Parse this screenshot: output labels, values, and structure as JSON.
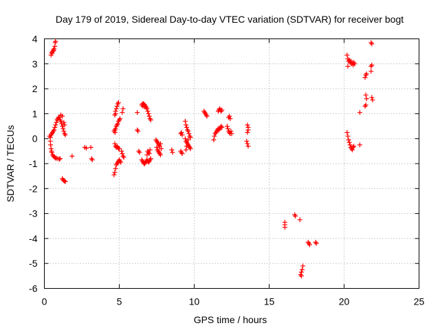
{
  "chart_data": {
    "type": "scatter",
    "title": "Day 179 of 2019, Sidereal Day-to-day VTEC variation (SDTVAR) for receiver bogt",
    "xlabel": "GPS time / hours",
    "ylabel": "SDTVAR / TECUs",
    "xlim": [
      0,
      25
    ],
    "ylim": [
      -6,
      4
    ],
    "xticks": [
      0,
      5,
      10,
      15,
      20,
      25
    ],
    "yticks": [
      -6,
      -5,
      -4,
      -3,
      -2,
      -1,
      0,
      1,
      2,
      3,
      4
    ],
    "xtick_labels": [
      "0",
      "5",
      "10",
      "15",
      "20",
      "25"
    ],
    "ytick_labels": [
      "-6",
      "-5",
      "-4",
      "-3",
      "-2",
      "-1",
      "0",
      "1",
      "2",
      "3",
      "4"
    ],
    "grid": true,
    "marker": "plus",
    "color": "#ff0000",
    "series": [
      {
        "name": "SDTVAR",
        "points": [
          [
            0.45,
            3.35
          ],
          [
            0.5,
            3.45
          ],
          [
            0.55,
            3.5
          ],
          [
            0.6,
            3.55
          ],
          [
            0.65,
            3.6
          ],
          [
            0.7,
            3.7
          ],
          [
            0.72,
            3.85
          ],
          [
            0.75,
            3.9
          ],
          [
            0.52,
            3.42
          ],
          [
            0.62,
            3.52
          ],
          [
            0.35,
            0.1
          ],
          [
            0.4,
            0.05
          ],
          [
            0.45,
            0.15
          ],
          [
            0.5,
            0.2
          ],
          [
            0.55,
            0.25
          ],
          [
            0.6,
            0.3
          ],
          [
            0.65,
            0.35
          ],
          [
            0.7,
            0.45
          ],
          [
            0.75,
            0.55
          ],
          [
            0.8,
            0.65
          ],
          [
            0.85,
            0.75
          ],
          [
            0.9,
            0.8
          ],
          [
            0.95,
            0.85
          ],
          [
            1.0,
            0.85
          ],
          [
            1.05,
            0.75
          ],
          [
            1.1,
            0.7
          ],
          [
            1.15,
            0.6
          ],
          [
            1.2,
            0.5
          ],
          [
            1.25,
            0.4
          ],
          [
            1.3,
            0.3
          ],
          [
            1.35,
            0.2
          ],
          [
            1.4,
            0.15
          ],
          [
            1.1,
            0.95
          ],
          [
            1.2,
            0.9
          ],
          [
            1.3,
            0.65
          ],
          [
            1.35,
            0.55
          ],
          [
            0.4,
            -0.1
          ],
          [
            0.42,
            -0.25
          ],
          [
            0.45,
            -0.4
          ],
          [
            0.5,
            -0.55
          ],
          [
            0.55,
            -0.65
          ],
          [
            0.6,
            -0.7
          ],
          [
            0.7,
            -0.75
          ],
          [
            0.8,
            -0.78
          ],
          [
            0.9,
            -0.8
          ],
          [
            1.0,
            -0.82
          ],
          [
            1.05,
            -0.8
          ],
          [
            0.48,
            -0.5
          ],
          [
            0.65,
            -0.72
          ],
          [
            0.75,
            -0.78
          ],
          [
            1.2,
            -1.6
          ],
          [
            1.25,
            -1.65
          ],
          [
            1.3,
            -1.68
          ],
          [
            1.35,
            -1.7
          ],
          [
            1.4,
            -1.72
          ],
          [
            1.85,
            -0.7
          ],
          [
            2.7,
            -0.35
          ],
          [
            2.8,
            -0.38
          ],
          [
            3.1,
            -0.35
          ],
          [
            3.15,
            -0.8
          ],
          [
            3.2,
            -0.85
          ],
          [
            4.65,
            -1.45
          ],
          [
            4.7,
            -1.35
          ],
          [
            4.75,
            -1.2
          ],
          [
            4.8,
            -1.05
          ],
          [
            4.85,
            -1.0
          ],
          [
            4.9,
            -0.95
          ],
          [
            4.95,
            -0.9
          ],
          [
            5.0,
            -0.85
          ],
          [
            5.05,
            -0.9
          ],
          [
            5.1,
            -0.95
          ],
          [
            4.7,
            -0.2
          ],
          [
            4.75,
            -0.3
          ],
          [
            4.8,
            -0.35
          ],
          [
            4.85,
            -0.3
          ],
          [
            4.9,
            -0.35
          ],
          [
            4.95,
            -0.4
          ],
          [
            5.0,
            -0.4
          ],
          [
            4.65,
            0.3
          ],
          [
            4.7,
            0.35
          ],
          [
            4.75,
            0.4
          ],
          [
            4.8,
            0.5
          ],
          [
            4.85,
            0.55
          ],
          [
            4.9,
            0.6
          ],
          [
            4.95,
            0.7
          ],
          [
            5.0,
            0.75
          ],
          [
            5.05,
            0.8
          ],
          [
            4.72,
            0.25
          ],
          [
            4.7,
            0.95
          ],
          [
            4.75,
            1.1
          ],
          [
            4.8,
            1.2
          ],
          [
            4.85,
            1.3
          ],
          [
            4.9,
            1.4
          ],
          [
            4.95,
            1.45
          ],
          [
            4.75,
            1.0
          ],
          [
            5.15,
            -0.5
          ],
          [
            5.2,
            -0.6
          ],
          [
            5.25,
            -0.7
          ],
          [
            5.3,
            -0.75
          ],
          [
            5.2,
            1.05
          ],
          [
            5.25,
            1.2
          ],
          [
            6.2,
            0.35
          ],
          [
            6.25,
            0.3
          ],
          [
            6.2,
            1.05
          ],
          [
            6.3,
            -0.5
          ],
          [
            6.35,
            -0.55
          ],
          [
            6.5,
            1.35
          ],
          [
            6.55,
            1.4
          ],
          [
            6.6,
            1.4
          ],
          [
            6.65,
            1.38
          ],
          [
            6.7,
            1.35
          ],
          [
            6.75,
            1.3
          ],
          [
            6.8,
            1.25
          ],
          [
            6.85,
            1.2
          ],
          [
            6.9,
            1.1
          ],
          [
            6.95,
            1.0
          ],
          [
            7.0,
            0.9
          ],
          [
            7.05,
            0.8
          ],
          [
            7.1,
            0.75
          ],
          [
            6.58,
            1.3
          ],
          [
            6.68,
            1.28
          ],
          [
            6.5,
            -0.85
          ],
          [
            6.55,
            -0.9
          ],
          [
            6.6,
            -0.95
          ],
          [
            6.65,
            -1.0
          ],
          [
            6.7,
            -1.0
          ],
          [
            6.75,
            -0.95
          ],
          [
            6.8,
            -0.9
          ],
          [
            6.85,
            -0.85
          ],
          [
            6.9,
            -0.9
          ],
          [
            6.95,
            -0.95
          ],
          [
            7.0,
            -0.9
          ],
          [
            7.05,
            -0.85
          ],
          [
            7.1,
            -0.8
          ],
          [
            6.9,
            -0.5
          ],
          [
            6.95,
            -0.55
          ],
          [
            7.0,
            -0.6
          ],
          [
            7.05,
            -0.45
          ],
          [
            6.85,
            -0.65
          ],
          [
            7.45,
            -0.05
          ],
          [
            7.5,
            -0.1
          ],
          [
            7.55,
            -0.15
          ],
          [
            7.6,
            -0.2
          ],
          [
            7.65,
            -0.25
          ],
          [
            7.7,
            -0.3
          ],
          [
            7.75,
            -0.2
          ],
          [
            7.5,
            -0.35
          ],
          [
            7.55,
            -0.45
          ],
          [
            7.6,
            -0.5
          ],
          [
            7.65,
            -0.55
          ],
          [
            7.7,
            -0.6
          ],
          [
            7.75,
            -0.65
          ],
          [
            7.8,
            -0.4
          ],
          [
            8.5,
            -0.45
          ],
          [
            8.55,
            -0.55
          ],
          [
            9.1,
            0.2
          ],
          [
            9.15,
            0.25
          ],
          [
            9.2,
            0.15
          ],
          [
            9.1,
            -0.5
          ],
          [
            9.15,
            -0.55
          ],
          [
            9.2,
            -0.6
          ],
          [
            9.4,
            0.7
          ],
          [
            9.45,
            0.55
          ],
          [
            9.5,
            0.45
          ],
          [
            9.55,
            0.35
          ],
          [
            9.6,
            0.3
          ],
          [
            9.65,
            0.2
          ],
          [
            9.7,
            0.1
          ],
          [
            9.75,
            0.05
          ],
          [
            9.4,
            0.0
          ],
          [
            9.45,
            -0.1
          ],
          [
            9.5,
            -0.15
          ],
          [
            9.55,
            -0.2
          ],
          [
            9.6,
            -0.25
          ],
          [
            9.65,
            -0.3
          ],
          [
            9.7,
            -0.35
          ],
          [
            9.75,
            -0.4
          ],
          [
            9.5,
            -0.3
          ],
          [
            9.6,
            -0.05
          ],
          [
            9.45,
            -0.45
          ],
          [
            10.65,
            1.1
          ],
          [
            10.7,
            1.05
          ],
          [
            10.75,
            1.0
          ],
          [
            10.8,
            0.95
          ],
          [
            10.85,
            0.9
          ],
          [
            11.3,
            -0.05
          ],
          [
            11.35,
            0.1
          ],
          [
            11.4,
            0.2
          ],
          [
            11.45,
            0.25
          ],
          [
            11.5,
            0.3
          ],
          [
            11.55,
            0.35
          ],
          [
            11.6,
            0.4
          ],
          [
            11.65,
            0.35
          ],
          [
            11.7,
            0.4
          ],
          [
            11.75,
            0.45
          ],
          [
            11.8,
            0.5
          ],
          [
            11.85,
            0.45
          ],
          [
            11.6,
            1.1
          ],
          [
            11.65,
            1.15
          ],
          [
            11.7,
            1.2
          ],
          [
            11.75,
            1.15
          ],
          [
            11.8,
            1.1
          ],
          [
            11.85,
            1.15
          ],
          [
            12.2,
            0.5
          ],
          [
            12.25,
            0.4
          ],
          [
            12.3,
            0.3
          ],
          [
            12.35,
            0.25
          ],
          [
            12.4,
            0.2
          ],
          [
            12.45,
            0.3
          ],
          [
            12.5,
            0.2
          ],
          [
            12.3,
            0.85
          ],
          [
            12.35,
            0.9
          ],
          [
            12.4,
            0.8
          ],
          [
            13.55,
            0.55
          ],
          [
            13.6,
            0.45
          ],
          [
            13.6,
            0.35
          ],
          [
            13.55,
            0.25
          ],
          [
            13.5,
            -0.1
          ],
          [
            13.55,
            -0.2
          ],
          [
            13.6,
            -0.3
          ],
          [
            16.05,
            -3.35
          ],
          [
            16.05,
            -3.45
          ],
          [
            16.05,
            -3.55
          ],
          [
            16.7,
            -3.05
          ],
          [
            16.75,
            -3.1
          ],
          [
            17.05,
            -3.25
          ],
          [
            17.1,
            -5.45
          ],
          [
            17.15,
            -5.35
          ],
          [
            17.2,
            -5.25
          ],
          [
            17.25,
            -5.1
          ],
          [
            17.15,
            -5.5
          ],
          [
            17.6,
            -4.15
          ],
          [
            17.65,
            -4.2
          ],
          [
            17.7,
            -4.25
          ],
          [
            18.1,
            -4.15
          ],
          [
            18.15,
            -4.2
          ],
          [
            20.2,
            3.35
          ],
          [
            20.25,
            3.2
          ],
          [
            20.3,
            3.1
          ],
          [
            20.35,
            3.15
          ],
          [
            20.4,
            3.05
          ],
          [
            20.45,
            3.1
          ],
          [
            20.5,
            3.0
          ],
          [
            20.55,
            3.05
          ],
          [
            20.6,
            2.95
          ],
          [
            20.65,
            3.05
          ],
          [
            20.7,
            3.0
          ],
          [
            20.25,
            2.9
          ],
          [
            20.2,
            0.25
          ],
          [
            20.25,
            0.1
          ],
          [
            20.3,
            -0.05
          ],
          [
            20.35,
            -0.15
          ],
          [
            20.4,
            -0.25
          ],
          [
            20.45,
            -0.35
          ],
          [
            20.5,
            -0.4
          ],
          [
            20.55,
            -0.45
          ],
          [
            20.6,
            -0.35
          ],
          [
            20.65,
            -0.3
          ],
          [
            21.05,
            -0.25
          ],
          [
            21.05,
            1.05
          ],
          [
            21.4,
            1.3
          ],
          [
            21.45,
            1.35
          ],
          [
            21.5,
            1.6
          ],
          [
            21.45,
            1.75
          ],
          [
            21.4,
            2.45
          ],
          [
            21.45,
            2.55
          ],
          [
            21.5,
            2.6
          ],
          [
            21.8,
            3.85
          ],
          [
            21.85,
            3.8
          ],
          [
            21.8,
            2.9
          ],
          [
            21.85,
            2.95
          ],
          [
            21.8,
            2.7
          ],
          [
            21.85,
            1.65
          ],
          [
            21.9,
            1.55
          ]
        ]
      }
    ]
  }
}
